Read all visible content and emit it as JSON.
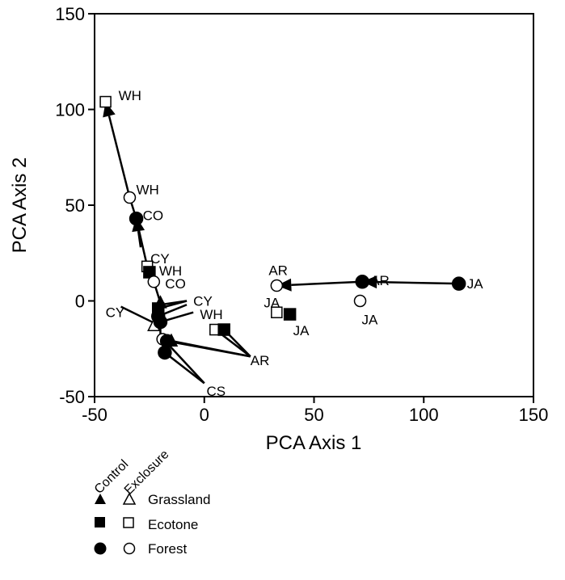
{
  "chart_data": {
    "type": "scatter",
    "xlabel": "PCA Axis 1",
    "ylabel": "PCA Axis 2",
    "xlim": [
      -50,
      150
    ],
    "ylim": [
      -50,
      150
    ],
    "xticks": [
      "-50",
      "0",
      "50",
      "100",
      "150"
    ],
    "yticks": [
      "-50",
      "0",
      "50",
      "100",
      "150"
    ],
    "grid": false,
    "legend": {
      "placement": "bottom-left",
      "headers": [
        "Control",
        "Exclosure"
      ],
      "entries": [
        {
          "habitat": "Grassland",
          "shape": "triangle"
        },
        {
          "habitat": "Ecotone",
          "shape": "square"
        },
        {
          "habitat": "Forest",
          "shape": "circle"
        }
      ]
    },
    "points": [
      {
        "id": "JA_fc",
        "habitat": "forest",
        "treatment": "control",
        "x": 116,
        "y": 9,
        "label": "JA",
        "dx": 10,
        "dy": 0
      },
      {
        "id": "AR_fc",
        "habitat": "forest",
        "treatment": "control",
        "x": 72,
        "y": 10,
        "label": "AR",
        "dx": 10,
        "dy": -2
      },
      {
        "id": "AR_fe",
        "habitat": "forest",
        "treatment": "exclosure",
        "x": 33,
        "y": 8,
        "label": "AR",
        "dx": -10,
        "dy": -19
      },
      {
        "id": "JA_fe",
        "habitat": "forest",
        "treatment": "exclosure",
        "x": 71,
        "y": 0,
        "label": "JA",
        "dx": 2,
        "dy": 23
      },
      {
        "id": "JA_ee",
        "habitat": "ecotone",
        "treatment": "exclosure",
        "x": 33,
        "y": -6,
        "label": "JA",
        "dx": -16,
        "dy": -12
      },
      {
        "id": "JA_ec",
        "habitat": "ecotone",
        "treatment": "control",
        "x": 39,
        "y": -7,
        "label": "JA",
        "dx": 4,
        "dy": 20
      },
      {
        "id": "AR_ee",
        "habitat": "ecotone",
        "treatment": "exclosure",
        "x": 5,
        "y": -15,
        "label": "",
        "dx": 0,
        "dy": 0
      },
      {
        "id": "AR_ec",
        "habitat": "ecotone",
        "treatment": "control",
        "x": 9,
        "y": -15,
        "label": "",
        "dx": 0,
        "dy": 0
      },
      {
        "id": "WH_ee",
        "habitat": "ecotone",
        "treatment": "exclosure",
        "x": -45,
        "y": 104,
        "label": "WH",
        "dx": 16,
        "dy": -8
      },
      {
        "id": "WH_fe",
        "habitat": "forest",
        "treatment": "exclosure",
        "x": -34,
        "y": 54,
        "label": "WH",
        "dx": 8,
        "dy": -10
      },
      {
        "id": "CO_fc",
        "habitat": "forest",
        "treatment": "control",
        "x": -31,
        "y": 43,
        "label": "CO",
        "dx": 8,
        "dy": -4
      },
      {
        "id": "CY_ee",
        "habitat": "ecotone",
        "treatment": "exclosure",
        "x": -26,
        "y": 18,
        "label": "CY",
        "dx": 4,
        "dy": -10
      },
      {
        "id": "WH_ec",
        "habitat": "ecotone",
        "treatment": "control",
        "x": -25,
        "y": 15,
        "label": "WH",
        "dx": 12,
        "dy": -2
      },
      {
        "id": "CO_fe",
        "habitat": "forest",
        "treatment": "exclosure",
        "x": -23,
        "y": 10,
        "label": "CO",
        "dx": 14,
        "dy": 2
      },
      {
        "id": "CY_gc",
        "habitat": "grassland",
        "treatment": "control",
        "x": -20,
        "y": -1,
        "label": "",
        "dx": 0,
        "dy": 0
      },
      {
        "id": "CY_ec",
        "habitat": "ecotone",
        "treatment": "control",
        "x": -21,
        "y": -4,
        "label": "",
        "dx": 0,
        "dy": 0
      },
      {
        "id": "CY_fc",
        "habitat": "forest",
        "treatment": "control",
        "x": -21,
        "y": -8,
        "label": "",
        "dx": 0,
        "dy": 0
      },
      {
        "id": "CY_ge",
        "habitat": "grassland",
        "treatment": "exclosure",
        "x": -23,
        "y": -13,
        "label": "",
        "dx": 0,
        "dy": 0
      },
      {
        "id": "WH_fc",
        "habitat": "forest",
        "treatment": "control",
        "x": -20,
        "y": -11,
        "label": "",
        "dx": 0,
        "dy": 0
      },
      {
        "id": "AR_fe2",
        "habitat": "forest",
        "treatment": "exclosure",
        "x": -19,
        "y": -20,
        "label": "",
        "dx": 0,
        "dy": 0
      },
      {
        "id": "AR_gc",
        "habitat": "grassland",
        "treatment": "control",
        "x": -15,
        "y": -21,
        "label": "",
        "dx": 0,
        "dy": 0
      },
      {
        "id": "AR_fc2",
        "habitat": "forest",
        "treatment": "control",
        "x": -17,
        "y": -21,
        "label": "",
        "dx": 0,
        "dy": 0
      },
      {
        "id": "CS_fc",
        "habitat": "forest",
        "treatment": "control",
        "x": -18,
        "y": -27,
        "label": "",
        "dx": 0,
        "dy": 0
      }
    ],
    "free_labels": [
      {
        "text": "CY",
        "x": -5,
        "y": 0
      },
      {
        "text": "WH",
        "x": -2,
        "y": -7
      },
      {
        "text": "CY",
        "x": -45,
        "y": -6
      },
      {
        "text": "AR",
        "x": 21,
        "y": -31
      },
      {
        "text": "CS",
        "x": 1,
        "y": -47
      }
    ],
    "arrows": [
      {
        "from": [
          116,
          9
        ],
        "to": [
          72,
          10
        ]
      },
      {
        "from": [
          72,
          10
        ],
        "to": [
          33,
          8
        ]
      },
      {
        "from": [
          -34,
          54
        ],
        "to": [
          -45,
          104
        ]
      },
      {
        "from": [
          -29,
          28
        ],
        "to": [
          -31,
          44
        ]
      }
    ],
    "lines": [
      {
        "from": [
          -34,
          54
        ],
        "to": [
          -31,
          43
        ]
      },
      {
        "from": [
          -31,
          43
        ],
        "to": [
          -26,
          18
        ]
      },
      {
        "from": [
          -26,
          18
        ],
        "to": [
          -23,
          10
        ]
      },
      {
        "from": [
          -23,
          10
        ],
        "to": [
          -20,
          -1
        ]
      },
      {
        "from": [
          -20,
          -1
        ],
        "to": [
          -20,
          -22
        ]
      },
      {
        "from": [
          -20,
          -2
        ],
        "to": [
          -8,
          0
        ]
      },
      {
        "from": [
          -21,
          -4
        ],
        "to": [
          -8,
          0
        ]
      },
      {
        "from": [
          -21,
          -8
        ],
        "to": [
          -8,
          -2
        ]
      },
      {
        "from": [
          -20,
          -11
        ],
        "to": [
          -5,
          -6
        ]
      },
      {
        "from": [
          -38,
          -3
        ],
        "to": [
          -22,
          -12
        ]
      },
      {
        "from": [
          -19,
          -20
        ],
        "to": [
          21,
          -29
        ]
      },
      {
        "from": [
          -17,
          -21
        ],
        "to": [
          21,
          -29
        ]
      },
      {
        "from": [
          5,
          -15
        ],
        "to": [
          21,
          -29
        ]
      },
      {
        "from": [
          9,
          -15
        ],
        "to": [
          21,
          -29
        ]
      },
      {
        "from": [
          -18,
          -27
        ],
        "to": [
          0,
          -43
        ]
      },
      {
        "from": [
          -17,
          -22
        ],
        "to": [
          0,
          -43
        ]
      }
    ]
  }
}
